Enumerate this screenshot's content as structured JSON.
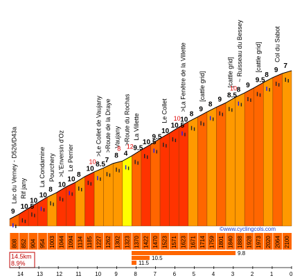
{
  "chart_data": {
    "type": "area",
    "site": "©www.cyclingcols.com",
    "summary": {
      "distance": "14.5km",
      "avg_gradient": "8.9%"
    },
    "max_gradients": [
      "9.8",
      "10.5",
      "11.5"
    ],
    "km_marks": [
      "14",
      "13",
      "12",
      "11",
      "10",
      "9",
      "8",
      "7",
      "6",
      "5",
      "4",
      "3",
      "2",
      "1",
      "0"
    ],
    "elevations": [
      "808",
      "852",
      "904",
      "954",
      "1003",
      "1044",
      "1094",
      "1134",
      "1185",
      "1227",
      "1262",
      "1302",
      "1323",
      "1370",
      "1422",
      "1470",
      "1523",
      "1571",
      "1623",
      "1671",
      "1714",
      "1759",
      "1801",
      "1840",
      "1888",
      "1928",
      "1973",
      "2020",
      "2064",
      "2100"
    ],
    "gradients": [
      "9",
      "10.5",
      "10",
      "10",
      "8",
      "10",
      "10",
      "8",
      "10",
      "8.5",
      "7",
      "8",
      "4",
      "9.5",
      "10.5",
      "9.5",
      "10",
      "10.5",
      "10",
      "8",
      "9",
      "8",
      "9",
      "8.5",
      "8",
      "9",
      "9.5",
      "8",
      "9",
      "7"
    ],
    "steep_sections": [
      "10",
      "8",
      "12",
      "10",
      "10"
    ],
    "locations": [
      {
        "name": "Lac du Verney - D526/D43a"
      },
      {
        "name": "Rif jany"
      },
      {
        "name": "La Condamine"
      },
      {
        "name": "Pourchery"
      },
      {
        "name": ">L'Enversin d'Oz"
      },
      {
        "name": "Le Perrier"
      },
      {
        "name": ">Le Collet de Vaujany"
      },
      {
        "name": ">Route de la Draye"
      },
      {
        "name": "Vaujany"
      },
      {
        "name": ">Route du Rochas"
      },
      {
        "name": "La Villette"
      },
      {
        "name": "Le Collet"
      },
      {
        "name": ">La Fenêtre de la Villette"
      },
      {
        "name": "[cattle grid]"
      },
      {
        "name": "[cattle grid]"
      },
      {
        "name": "~ Ruisseau du Bessey"
      },
      {
        "name": "[cattle grid]"
      },
      {
        "name": "Col du Sabot"
      }
    ],
    "colors": {
      "easy": "#ff9900",
      "medium": "#ff6600",
      "hard": "#ff3300",
      "flat": "#ffff00",
      "top": "#ffaa00",
      "band": "#ff6600",
      "gradient_bar": "#ff6600",
      "stat_border": "#c00000"
    }
  }
}
